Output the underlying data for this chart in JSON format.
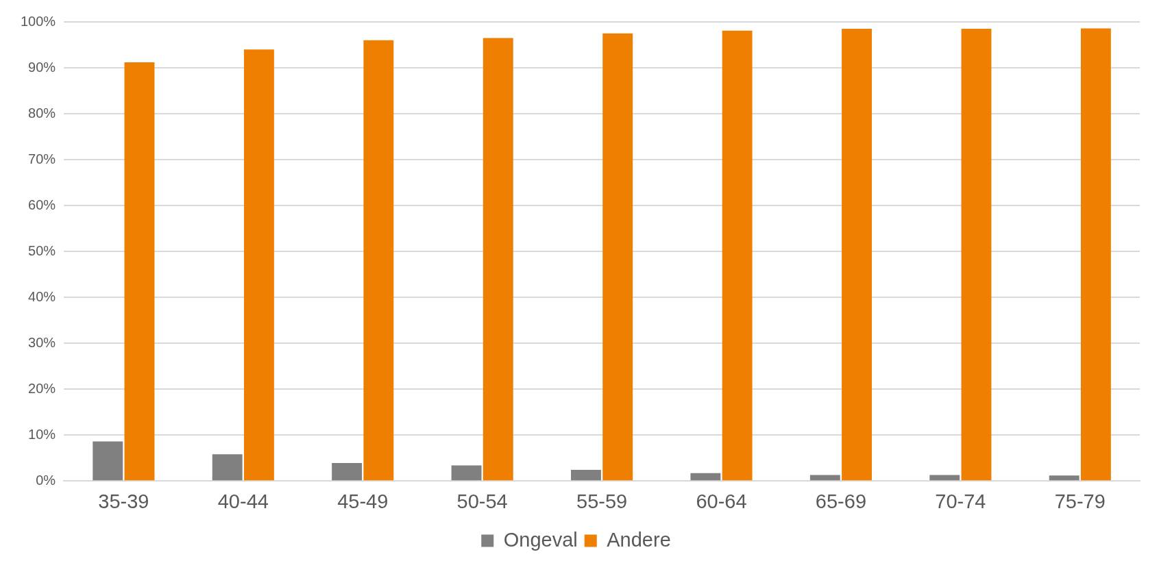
{
  "chart_data": {
    "type": "bar",
    "categories": [
      "35-39",
      "40-44",
      "45-49",
      "50-54",
      "55-59",
      "60-64",
      "65-69",
      "70-74",
      "75-79"
    ],
    "series": [
      {
        "name": "Ongeval",
        "color": "#808080",
        "values": [
          8.6,
          5.8,
          3.9,
          3.4,
          2.4,
          1.7,
          1.3,
          1.3,
          1.2
        ]
      },
      {
        "name": "Andere",
        "color": "#ef7f00",
        "values": [
          91.2,
          94.0,
          96.0,
          96.5,
          97.5,
          98.1,
          98.5,
          98.5,
          98.6
        ]
      }
    ],
    "ylim": [
      0,
      100
    ],
    "yticks": [
      {
        "value": 0,
        "label": "0%"
      },
      {
        "value": 10,
        "label": "10%"
      },
      {
        "value": 20,
        "label": "20%"
      },
      {
        "value": 30,
        "label": "30%"
      },
      {
        "value": 40,
        "label": "40%"
      },
      {
        "value": 50,
        "label": "50%"
      },
      {
        "value": 60,
        "label": "60%"
      },
      {
        "value": 70,
        "label": "70%"
      },
      {
        "value": 80,
        "label": "80%"
      },
      {
        "value": 90,
        "label": "90%"
      },
      {
        "value": 100,
        "label": "100%"
      }
    ],
    "grid": "y",
    "legend": "bottom"
  }
}
